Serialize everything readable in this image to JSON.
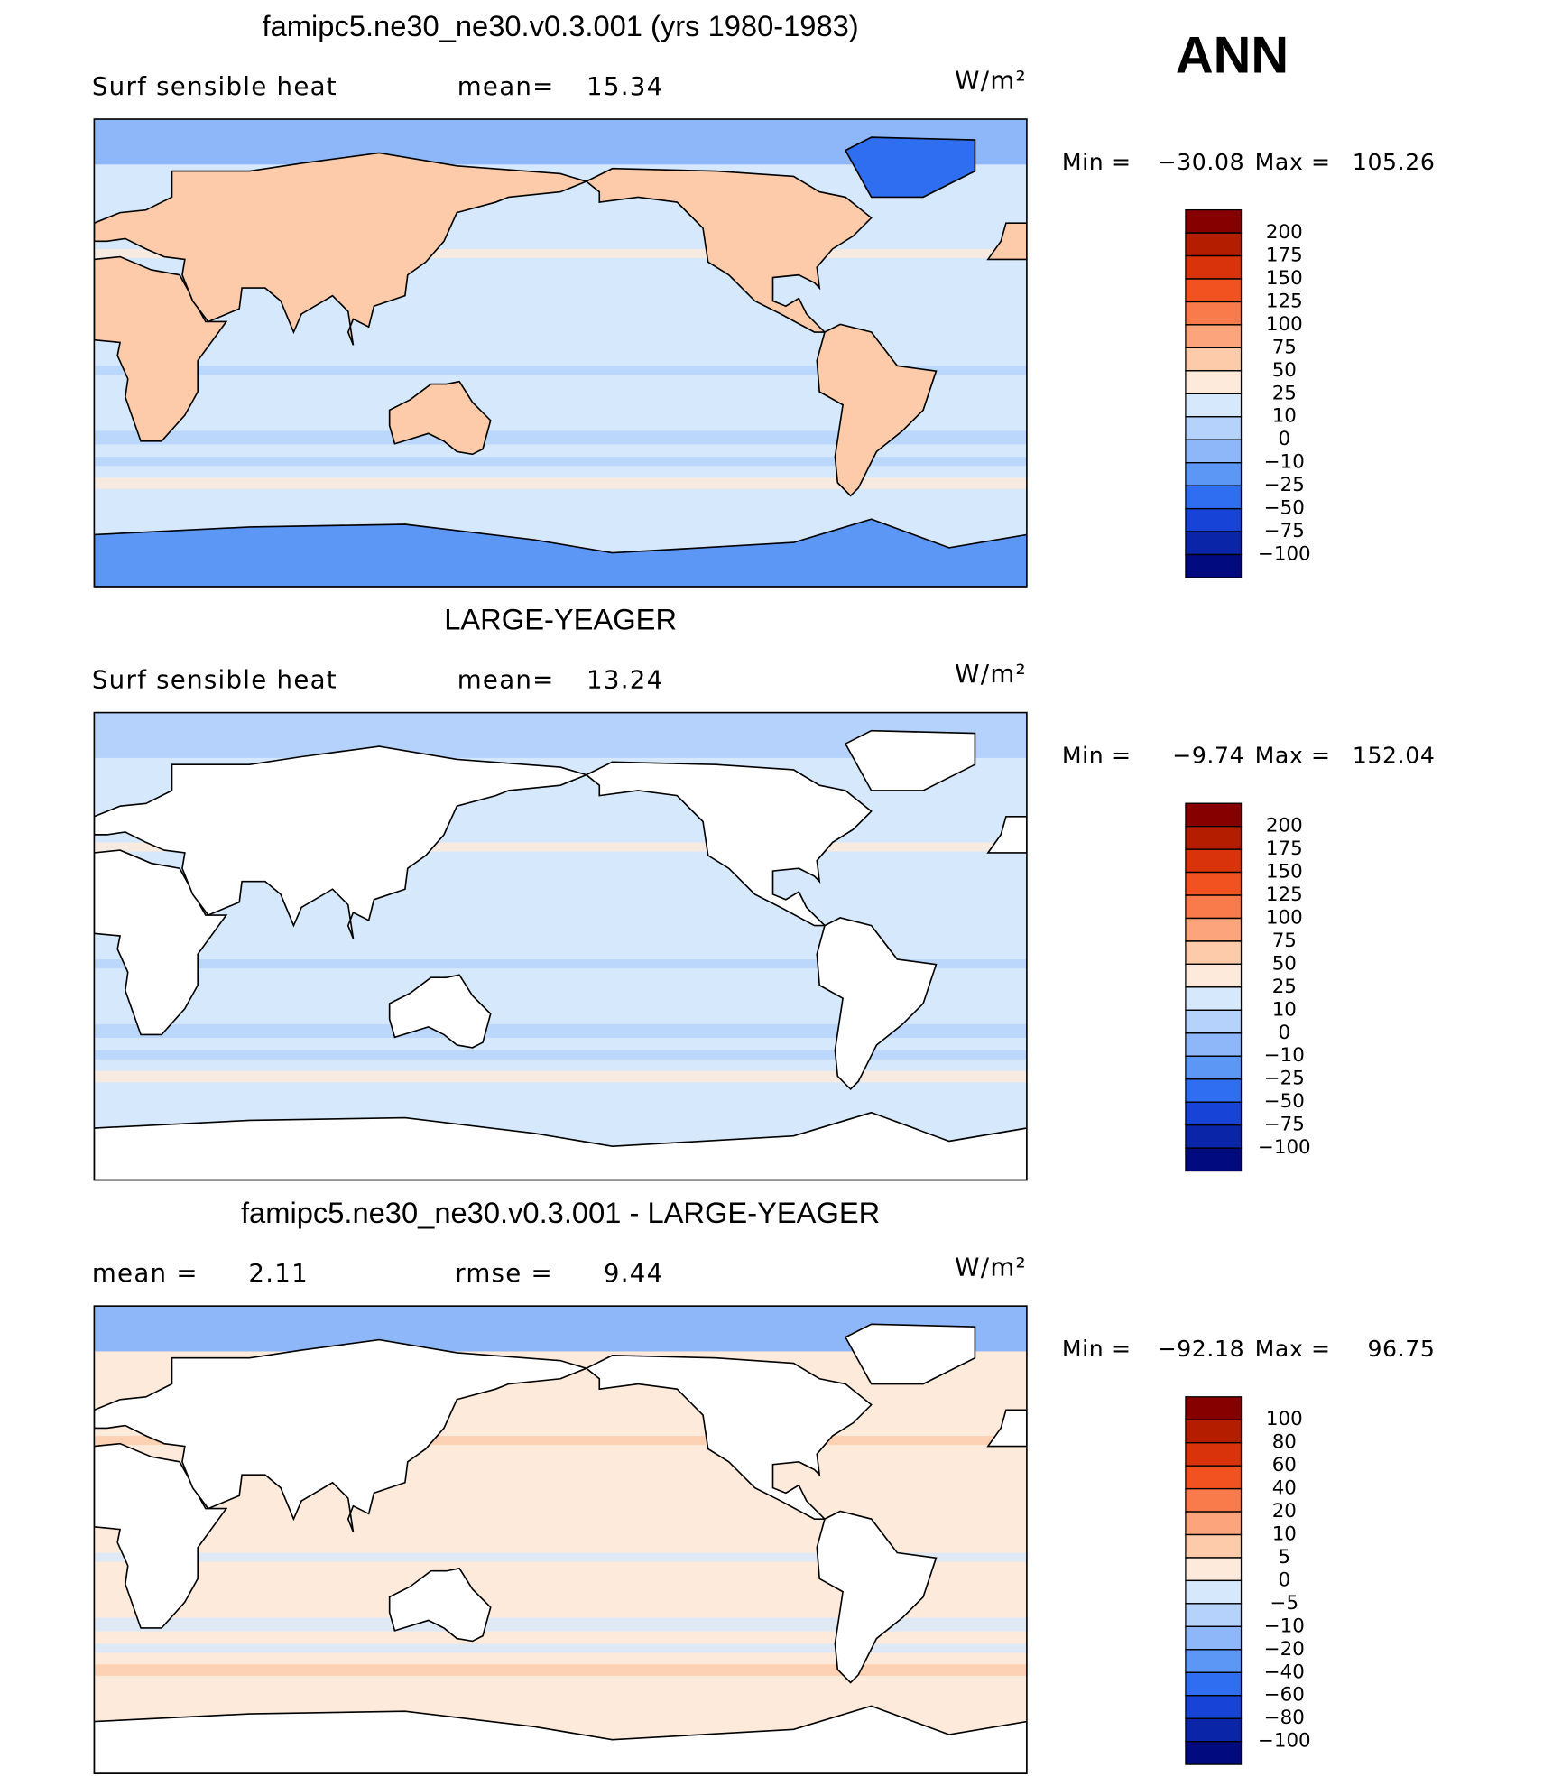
{
  "season": "ANN",
  "panels": [
    {
      "title": "famipc5.ne30_ne30.v0.3.001 (yrs 1980-1983)",
      "left_label": "Surf  sensible heat",
      "stats": [
        {
          "label": "mean=",
          "value": 15.34
        }
      ],
      "units": "W/m²",
      "min_label": "Min  =",
      "min": {
        "value": -30.08,
        "label": "−30.08"
      },
      "max_label": "Max  =",
      "max": 105.26,
      "levels": [
        200,
        175,
        150,
        125,
        100,
        75,
        50,
        25,
        10,
        0,
        {
          "value": -10,
          "label": "−10"
        },
        {
          "value": -25,
          "label": "−25"
        },
        {
          "value": -50,
          "label": "−50"
        },
        {
          "value": -75,
          "label": "−75"
        },
        {
          "value": -100,
          "label": "−100"
        }
      ],
      "colors": [
        "#870000",
        "#b51d00",
        "#d8330a",
        "#f2521f",
        "#f97a4a",
        "#fca47c",
        "#fdcbaa",
        "#feeadb",
        "#d6e8fb",
        "#b4d2fb",
        "#8db7f9",
        "#5c97f5",
        "#2f6ef0",
        "#1744d6",
        "#0a25a8",
        "#020a80"
      ]
    },
    {
      "title": "LARGE-YEAGER",
      "left_label": "Surf  sensible heat",
      "stats": [
        {
          "label": "mean=",
          "value": 13.24
        }
      ],
      "units": "W/m²",
      "min_label": "Min  =",
      "min": {
        "value": -9.74,
        "label": "−9.74"
      },
      "max_label": "Max  =",
      "max": 152.04,
      "levels": [
        200,
        175,
        150,
        125,
        100,
        75,
        50,
        25,
        10,
        0,
        {
          "value": -10,
          "label": "−10"
        },
        {
          "value": -25,
          "label": "−25"
        },
        {
          "value": -50,
          "label": "−50"
        },
        {
          "value": -75,
          "label": "−75"
        },
        {
          "value": -100,
          "label": "−100"
        }
      ],
      "colors": [
        "#870000",
        "#b51d00",
        "#d8330a",
        "#f2521f",
        "#f97a4a",
        "#fca47c",
        "#fdcbaa",
        "#feeadb",
        "#d6e8fb",
        "#b4d2fb",
        "#8db7f9",
        "#5c97f5",
        "#2f6ef0",
        "#1744d6",
        "#0a25a8",
        "#020a80"
      ]
    },
    {
      "title": "famipc5.ne30_ne30.v0.3.001 - LARGE-YEAGER",
      "stats": [
        {
          "label": "mean  =",
          "value": 2.11
        },
        {
          "label": "rmse  =",
          "value": 9.44
        }
      ],
      "units": "W/m²",
      "min_label": "Min  =",
      "min": {
        "value": -92.18,
        "label": "−92.18"
      },
      "max_label": "Max  =",
      "max": 96.75,
      "levels": [
        100,
        80,
        60,
        40,
        20,
        10,
        5,
        0,
        {
          "value": -5,
          "label": "−5"
        },
        {
          "value": -10,
          "label": "−10"
        },
        {
          "value": -20,
          "label": "−20"
        },
        {
          "value": -40,
          "label": "−40"
        },
        {
          "value": -60,
          "label": "−60"
        },
        {
          "value": -80,
          "label": "−80"
        },
        {
          "value": -100,
          "label": "−100"
        }
      ],
      "colors": [
        "#870000",
        "#b51d00",
        "#d8330a",
        "#f2521f",
        "#f97a4a",
        "#fca47c",
        "#fdcbaa",
        "#feeadb",
        "#d6e8fb",
        "#b4d2fb",
        "#8db7f9",
        "#5c97f5",
        "#2f6ef0",
        "#1744d6",
        "#0a25a8",
        "#020a80"
      ]
    }
  ]
}
